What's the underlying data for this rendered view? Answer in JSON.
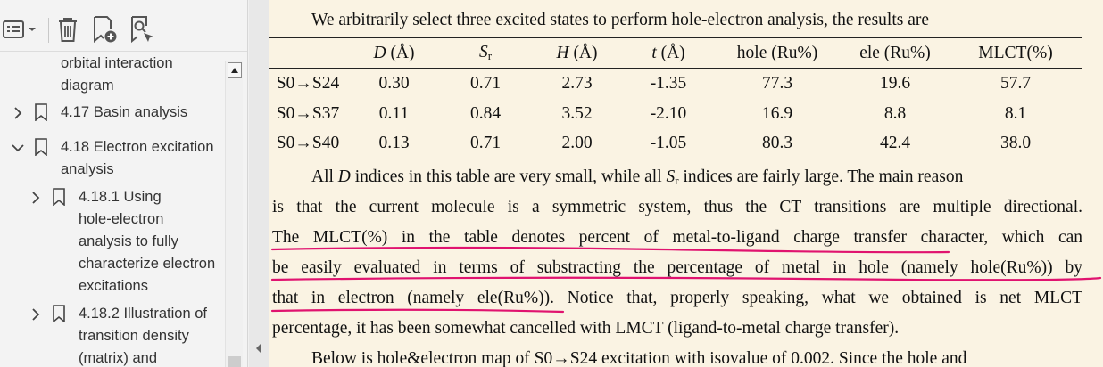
{
  "sidebar": {
    "toolbar": {
      "menu_icon": "options-list-icon",
      "delete_icon": "trash-icon",
      "add_bookmark_icon": "add-bookmark-icon",
      "find_bookmark_icon": "find-bookmark-icon"
    },
    "tree": [
      {
        "lines": [
          "orbital interaction",
          "diagram"
        ]
      },
      {
        "lines": [
          "4.17 Basin analysis"
        ],
        "chevron": "right"
      },
      {
        "lines": [
          "4.18 Electron excitation",
          "analysis"
        ],
        "chevron": "down"
      },
      {
        "lines": [
          "4.18.1 Using",
          "hole-electron",
          "analysis to fully",
          "characterize electron",
          "excitations"
        ],
        "chevron": "right"
      },
      {
        "lines": [
          "4.18.2 Illustration of",
          "transition density",
          "(matrix) and"
        ],
        "chevron": "right"
      }
    ]
  },
  "doc": {
    "intro": "We arbitrarily select three excited states to perform hole-electron analysis, the results are",
    "table": {
      "headers": [
        "",
        "D",
        "(Å)",
        "S",
        "r",
        "H",
        "(Å)",
        "t",
        "(Å)",
        "hole (Ru%)",
        "ele (Ru%)",
        "MLCT(%)"
      ],
      "rows": [
        [
          "S0→S24",
          "0.30",
          "0.71",
          "2.73",
          "-1.35",
          "77.3",
          "19.6",
          "57.7"
        ],
        [
          "S0→S37",
          "0.11",
          "0.84",
          "3.52",
          "-2.10",
          "16.9",
          "8.8",
          "8.1"
        ],
        [
          "S0→S40",
          "0.13",
          "0.71",
          "2.00",
          "-1.05",
          "80.3",
          "42.4",
          "38.0"
        ]
      ]
    },
    "para1": {
      "l1a": "All ",
      "l1D": "D",
      "l1b": " indices in this table are very small, while all ",
      "l1S": "S",
      "l1r": "r",
      "l1c": " indices are fairly large. The main reason",
      "l2": "is that the current molecule is a symmetric system, thus the CT transitions are multiple directional.",
      "l3": "The MLCT(%) in the table denotes percent of metal-to-ligand charge transfer character, which can",
      "l4": "be easily evaluated in terms of substracting the percentage of metal in hole (namely hole(Ru%)) by",
      "l5": "that in electron (namely ele(Ru%)). Notice that, properly speaking, what we obtained is net MLCT",
      "l6": "percentage, it has been somewhat cancelled with LMCT (ligand-to-metal charge transfer)."
    },
    "para2": "Below is hole&electron map of S0→S24 excitation with isovalue of 0.002. Since the hole and",
    "annotation_color": "#e0136f"
  }
}
